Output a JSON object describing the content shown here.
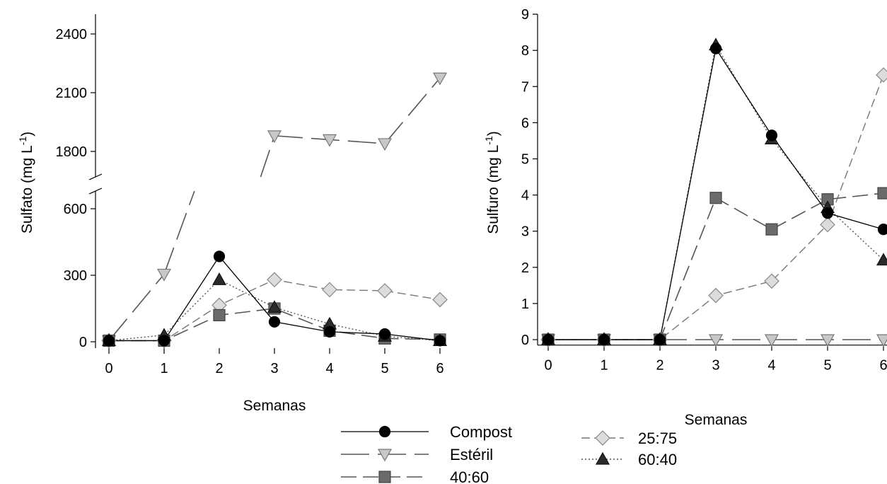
{
  "chart_data": [
    {
      "type": "line",
      "xlabel": "Semanas",
      "ylabel": "Sulfato (mg L",
      "ylabel_sup": "-1",
      "ylabel_close": ")",
      "x": [
        0,
        1,
        2,
        3,
        4,
        5,
        6
      ],
      "xticks": [
        "0",
        "1",
        "2",
        "3",
        "4",
        "5",
        "6"
      ],
      "y_axis_break": true,
      "ylim_lower": [
        0,
        700
      ],
      "ylim_upper": [
        1650,
        2450
      ],
      "yticks_lower": [
        "0",
        "300",
        "600"
      ],
      "yticks_upper": [
        "1800",
        "2100",
        "2400"
      ],
      "series": [
        {
          "name": "Compost",
          "values": [
            5,
            5,
            385,
            90,
            45,
            35,
            5
          ]
        },
        {
          "name": "Estéril",
          "values": [
            5,
            305,
            null,
            1880,
            1860,
            1840,
            2175
          ]
        },
        {
          "name": "40:60",
          "values": [
            5,
            5,
            120,
            150,
            50,
            15,
            10
          ]
        },
        {
          "name": "25:75",
          "values": [
            5,
            5,
            165,
            280,
            235,
            230,
            190
          ]
        },
        {
          "name": "60:40",
          "values": [
            5,
            30,
            280,
            155,
            80,
            25,
            5
          ]
        }
      ]
    },
    {
      "type": "line",
      "xlabel": "Semanas",
      "ylabel": "Sulfuro (mg L",
      "ylabel_sup": "-1",
      "ylabel_close": ")",
      "x": [
        0,
        1,
        2,
        3,
        4,
        5,
        6
      ],
      "xticks": [
        "0",
        "1",
        "2",
        "3",
        "4",
        "5",
        "6"
      ],
      "ylim": [
        -0.15,
        9
      ],
      "yticks": [
        "0",
        "1",
        "2",
        "3",
        "4",
        "5",
        "6",
        "7",
        "8",
        "9"
      ],
      "series": [
        {
          "name": "Compost",
          "values": [
            0,
            0,
            0,
            8.05,
            5.65,
            3.5,
            3.05
          ]
        },
        {
          "name": "Estéril",
          "values": [
            0,
            0,
            0,
            0,
            0,
            0,
            0
          ]
        },
        {
          "name": "40:60",
          "values": [
            0,
            0,
            0,
            3.92,
            3.05,
            3.88,
            4.05
          ]
        },
        {
          "name": "25:75",
          "values": [
            0,
            0,
            0,
            1.22,
            1.62,
            3.18,
            7.32
          ]
        },
        {
          "name": "60:40",
          "values": [
            0,
            0,
            0,
            8.15,
            5.55,
            3.65,
            2.2
          ]
        }
      ]
    }
  ],
  "legend": [
    {
      "name": "Compost"
    },
    {
      "name": "Estéril"
    },
    {
      "name": "40:60"
    },
    {
      "name": "25:75"
    },
    {
      "name": "60:40"
    }
  ]
}
